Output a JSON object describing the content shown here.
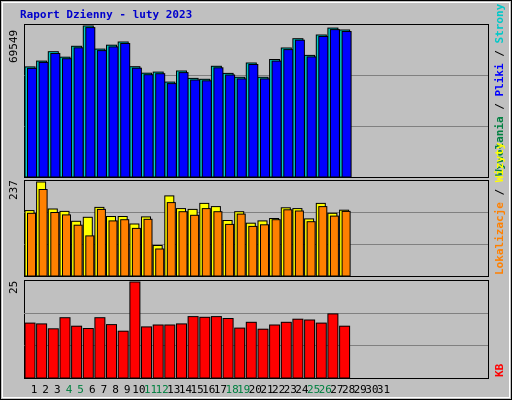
{
  "title": "Raport Dzienny -  luty 2023",
  "colors": {
    "background": "#c0c0c0",
    "plot_bg": "#c0c0c0",
    "title": "#0000cc",
    "hits": "#00a0a0",
    "files": "#0000ff",
    "pages": "#00c8c8",
    "visits": "#ffff00",
    "sites": "#ff8000",
    "kb": "#ff0000",
    "weekend": "#008040",
    "weekday": "#000000"
  },
  "right_labels": {
    "top": [
      {
        "text": "Wywołania",
        "color": "#008040"
      },
      {
        "text": " / ",
        "color": "#000000"
      },
      {
        "text": "Pliki",
        "color": "#0000ff"
      },
      {
        "text": " / ",
        "color": "#000000"
      },
      {
        "text": "Strony",
        "color": "#00c8c8"
      }
    ],
    "middle": [
      {
        "text": "Lokalizacje",
        "color": "#ff8000"
      },
      {
        "text": " / ",
        "color": "#000000"
      },
      {
        "text": "Wizyty",
        "color": "#ffff00"
      }
    ],
    "bottom": [
      {
        "text": "KB",
        "color": "#ff0000"
      }
    ]
  },
  "chart_data": [
    {
      "type": "bar",
      "panel": "hits",
      "ymax_label": "69549",
      "ylim": [
        0,
        69549
      ],
      "series": [
        {
          "name": "Wywołania",
          "values": [
            50700,
            53400,
            57700,
            55200,
            60200,
            69549,
            58900,
            60700,
            62200,
            50800,
            47800,
            48300,
            43700,
            48800,
            45400,
            45000,
            51000,
            47700,
            45900,
            52500,
            45900,
            54100,
            59400,
            63700,
            56000,
            65400,
            68600,
            67700
          ]
        },
        {
          "name": "Pliki",
          "values": [
            50000,
            52800,
            56900,
            54500,
            59500,
            68800,
            58200,
            59900,
            61500,
            50100,
            47100,
            47600,
            43000,
            48100,
            44700,
            44300,
            50300,
            47000,
            45200,
            51800,
            45200,
            53400,
            58700,
            63000,
            55300,
            64700,
            67900,
            67000
          ]
        }
      ]
    },
    {
      "type": "bar",
      "panel": "visits",
      "ymax_label": "237",
      "ylim": [
        0,
        237
      ],
      "series": [
        {
          "name": "Wizyty",
          "values": [
            165,
            237,
            169,
            163,
            138,
            148,
            173,
            150,
            150,
            131,
            149,
            77,
            202,
            170,
            168,
            183,
            175,
            140,
            162,
            133,
            139,
            145,
            172,
            170,
            144,
            183,
            158,
            166
          ]
        },
        {
          "name": "Lokalizacje",
          "values": [
            158,
            218,
            160,
            154,
            128,
            101,
            168,
            139,
            142,
            120,
            143,
            68,
            185,
            162,
            153,
            170,
            162,
            130,
            156,
            125,
            129,
            142,
            167,
            164,
            137,
            175,
            151,
            163
          ]
        }
      ]
    },
    {
      "type": "bar",
      "panel": "kb",
      "ymax_label": "25",
      "ylim": [
        0,
        25
      ],
      "series": [
        {
          "name": "KB",
          "values": [
            14.3,
            14.1,
            12.8,
            15.7,
            13.5,
            12.9,
            15.7,
            13.9,
            12.2,
            25,
            13.3,
            13.8,
            13.8,
            14.1,
            16.0,
            15.8,
            16.0,
            15.5,
            13.0,
            14.5,
            12.7,
            13.8,
            14.5,
            15.3,
            15.1,
            14.3,
            16.7,
            13.5
          ]
        }
      ]
    }
  ],
  "days": [
    "1",
    "2",
    "3",
    "4",
    "5",
    "6",
    "7",
    "8",
    "9",
    "10",
    "11",
    "12",
    "13",
    "14",
    "15",
    "16",
    "17",
    "18",
    "19",
    "20",
    "21",
    "22",
    "23",
    "24",
    "25",
    "26",
    "27",
    "28",
    "29",
    "30",
    "31"
  ],
  "weekend_days": [
    4,
    5,
    11,
    12,
    18,
    19,
    25,
    26
  ]
}
